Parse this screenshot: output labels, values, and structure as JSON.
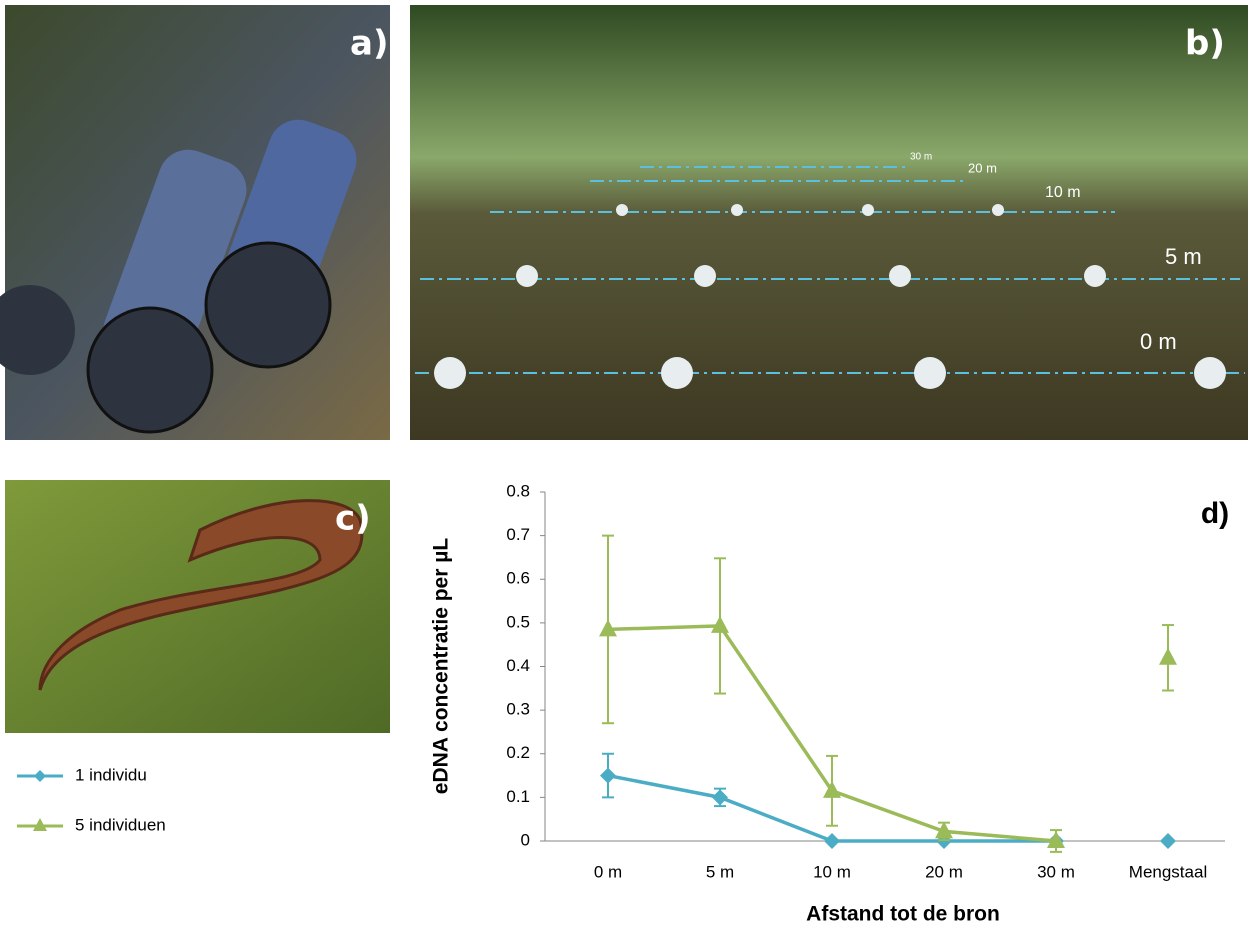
{
  "panels": {
    "a": "a)",
    "b": "b)",
    "c": "c)"
  },
  "photo_b_labels": [
    "0 m",
    "5 m",
    "10 m",
    "20 m",
    "30 m"
  ],
  "chart_data": {
    "type": "line",
    "panel_label": "d)",
    "x_label": "Afstand tot de bron",
    "y_label": "eDNA concentratie per µL",
    "categories": [
      "0 m",
      "5 m",
      "10 m",
      "20 m",
      "30 m",
      "Mengstaal"
    ],
    "unconnected_categories": [
      "Mengstaal"
    ],
    "ylim": [
      0,
      0.8
    ],
    "yticks": [
      0,
      0.1,
      0.2,
      0.3,
      0.4,
      0.5,
      0.6,
      0.7,
      0.8
    ],
    "series": [
      {
        "name": "1 individu",
        "color": "#4bacc6",
        "marker": "diamond",
        "values": [
          0.15,
          0.1,
          0,
          0,
          0,
          0
        ],
        "errors": [
          0.05,
          0.02,
          0,
          0,
          0,
          0
        ]
      },
      {
        "name": "5 individuen",
        "color": "#9bbb59",
        "marker": "triangle",
        "values": [
          0.485,
          0.493,
          0.115,
          0.022,
          0,
          0.42
        ],
        "errors": [
          0.215,
          0.155,
          0.08,
          0.02,
          0.025,
          0.075
        ]
      }
    ]
  }
}
